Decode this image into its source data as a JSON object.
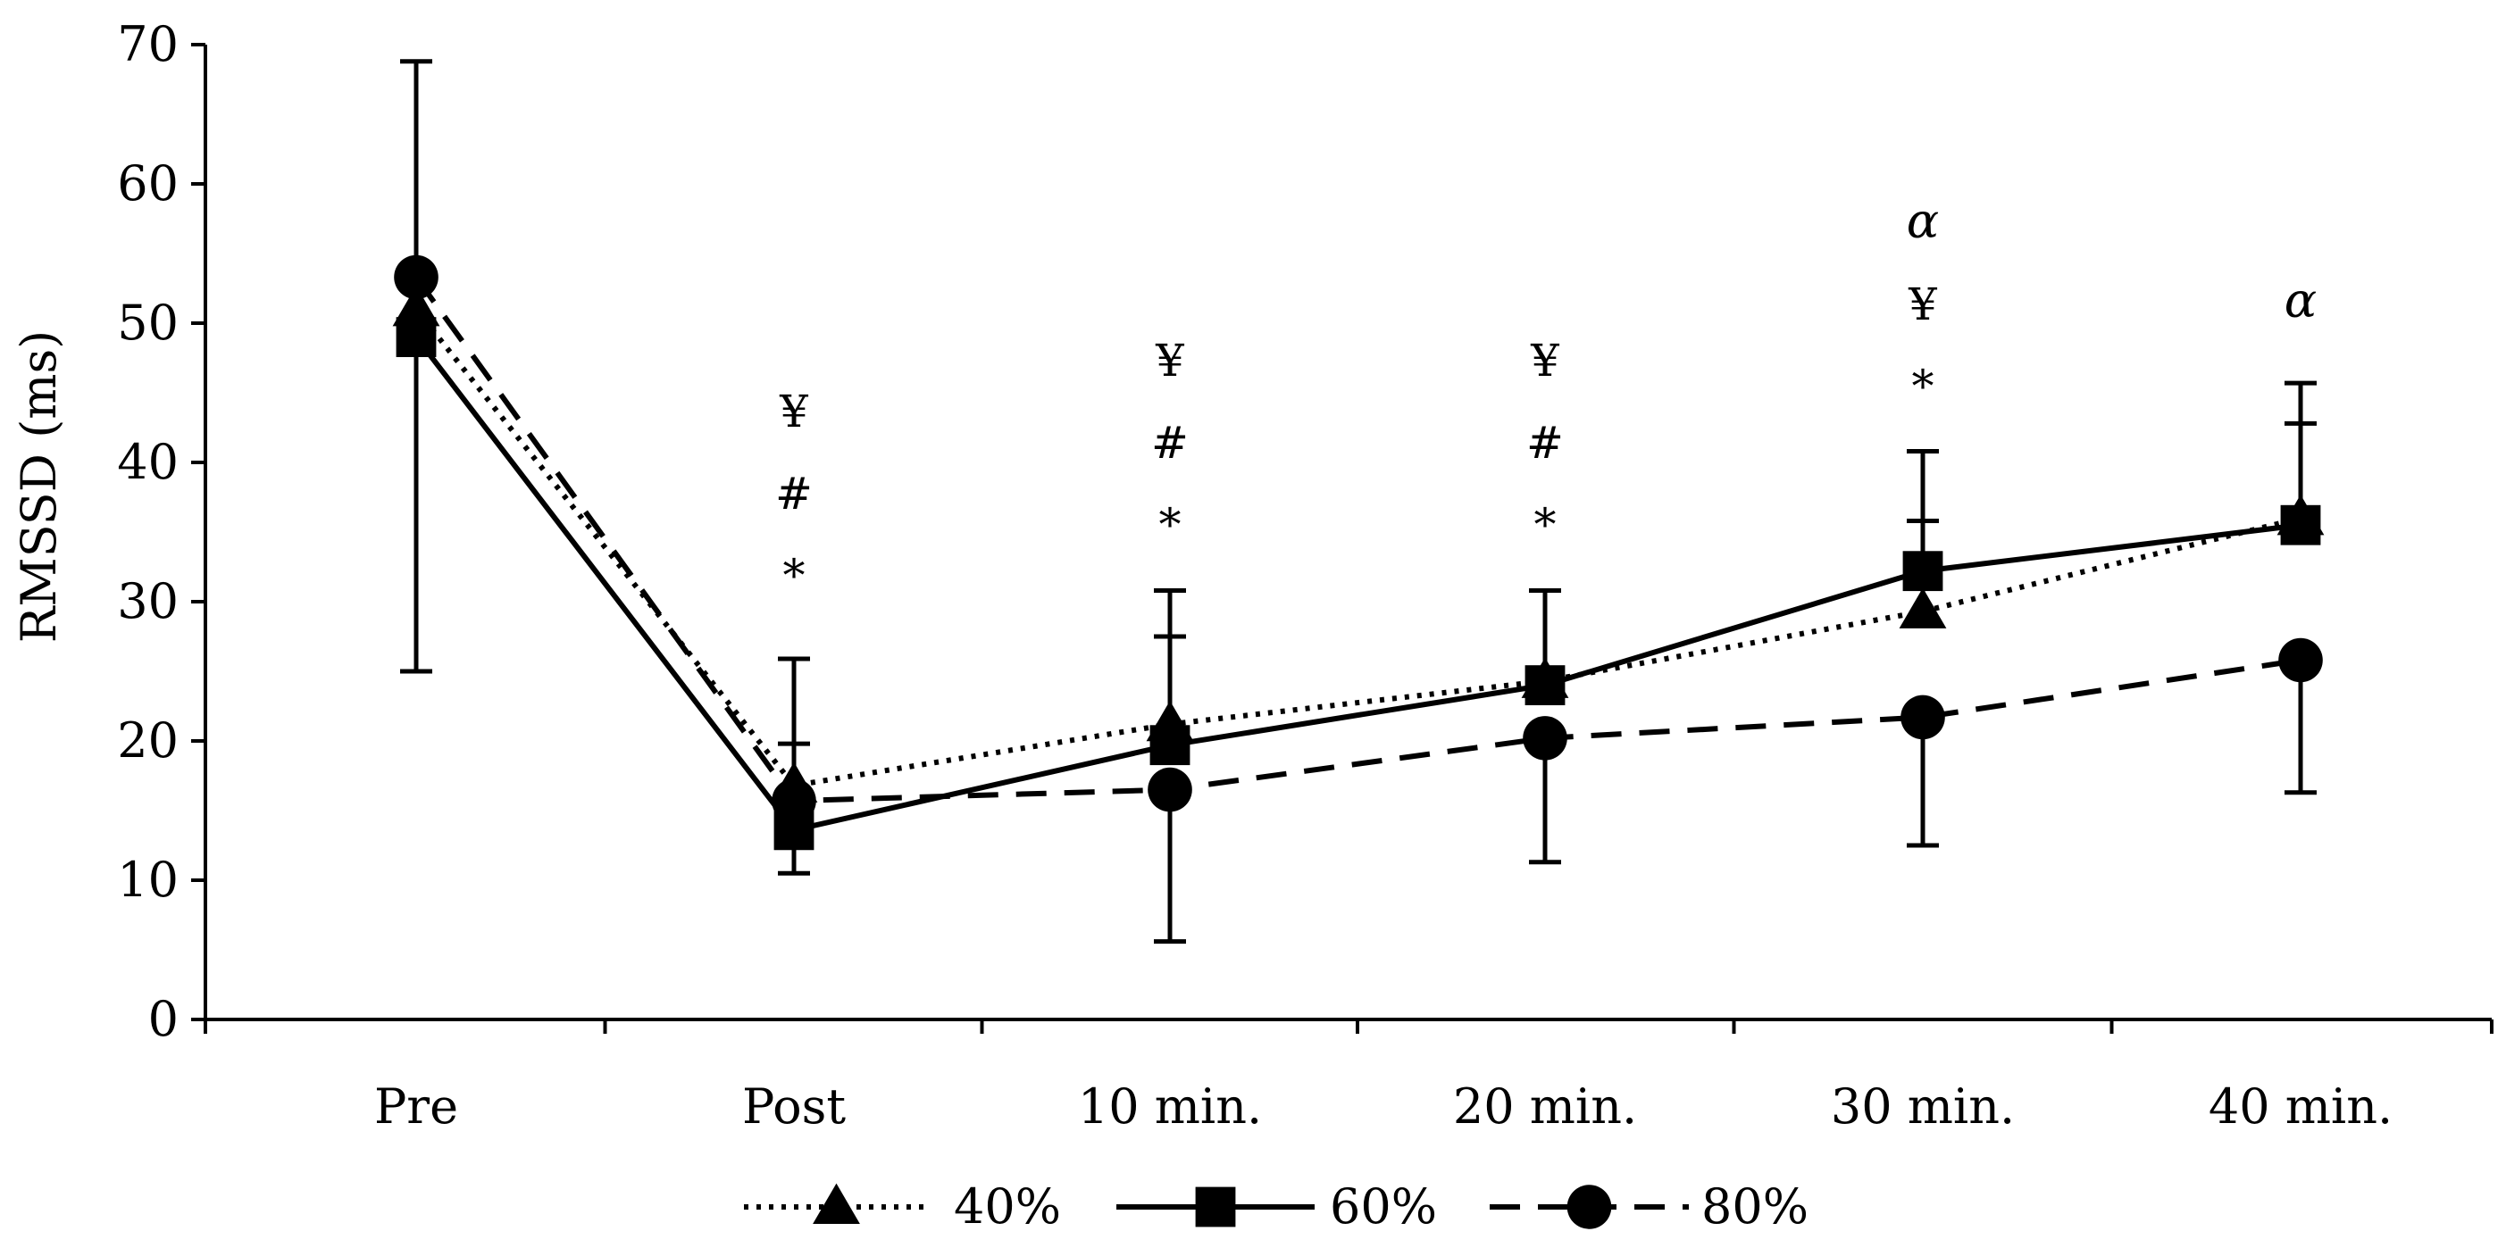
{
  "chart_data": {
    "type": "line",
    "title": "",
    "xlabel": "",
    "ylabel": "RMSSD (ms)",
    "ylim": [
      0,
      70
    ],
    "yticks": [
      "0",
      "10",
      "20",
      "30",
      "40",
      "50",
      "60",
      "70"
    ],
    "categories": [
      "Pre",
      "Post",
      "10 min.",
      "20 min.",
      "30 min.",
      "40 min."
    ],
    "grid": false,
    "legend_position": "bottom",
    "series": [
      {
        "name": "40%",
        "label": "40%",
        "marker": "triangle",
        "line_style": "dotted",
        "values": [
          51,
          16.8,
          21.2,
          24.3,
          29.3,
          36
        ],
        "error_upper": [
          null,
          19.8,
          27.5,
          30.8,
          35.8,
          42.8
        ],
        "error_lower": [
          null,
          null,
          null,
          null,
          null,
          null
        ]
      },
      {
        "name": "60%",
        "label": "60%",
        "marker": "square",
        "line_style": "solid",
        "values": [
          49,
          13.6,
          19.7,
          24,
          32.2,
          35.5
        ],
        "error_upper": [
          null,
          25.9,
          30.8,
          30.8,
          40.8,
          45.7
        ],
        "error_lower": [
          null,
          10.5,
          null,
          null,
          null,
          null
        ]
      },
      {
        "name": "80%",
        "label": "80%",
        "marker": "circle",
        "line_style": "dashed",
        "values": [
          53.3,
          15.7,
          16.5,
          20.2,
          21.7,
          25.8
        ],
        "error_upper": [
          68.8,
          null,
          null,
          null,
          null,
          null
        ],
        "error_lower": [
          25,
          null,
          5.6,
          11.3,
          12.5,
          16.3
        ]
      }
    ],
    "annotations": [
      {
        "category_index": 1,
        "lines": [
          "¥",
          "#",
          "*"
        ]
      },
      {
        "category_index": 2,
        "lines": [
          "¥",
          "#",
          "*"
        ]
      },
      {
        "category_index": 3,
        "lines": [
          "¥",
          "#",
          "*"
        ]
      },
      {
        "category_index": 4,
        "lines": [
          "α",
          "¥",
          "*"
        ]
      },
      {
        "category_index": 5,
        "lines": [
          "α"
        ]
      }
    ]
  }
}
